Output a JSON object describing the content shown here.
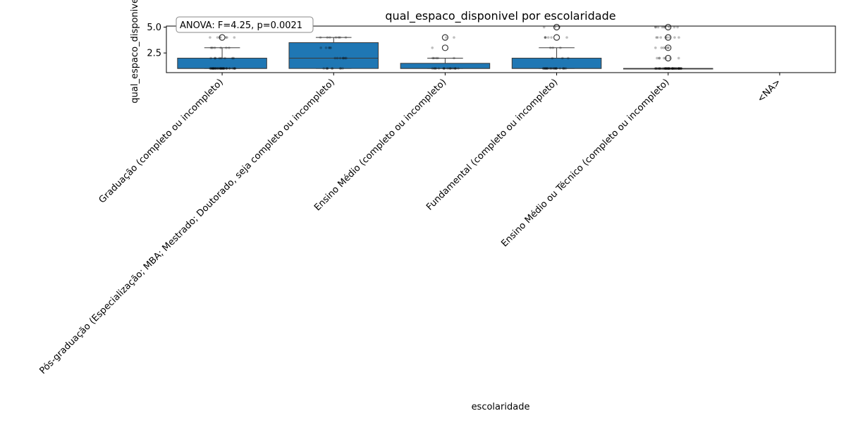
{
  "chart_data": {
    "type": "box",
    "title": "qual_espaco_disponivel por escolaridade",
    "xlabel": "escolaridade",
    "ylabel": "qual_espaco_disponivel",
    "ylim": [
      0.6,
      5.1
    ],
    "yticks": [
      2.5,
      5.0
    ],
    "ytick_labels": [
      "2.5",
      "5.0"
    ],
    "annotation": "ANOVA: F=4.25, p=0.0021",
    "box_color": "#1f77b4",
    "categories": [
      "Graduação (completo ou incompleto)",
      "Pós-graduação (Especialização; MBA; Mestrado; Doutorado, seja completo ou incompleto)",
      "Ensino Médio (completo ou incompleto)",
      "Fundamental (completo ou incompleto)",
      "Ensino Médio ou Técnico (completo ou incompleto)",
      "<NA>"
    ],
    "boxes": [
      {
        "q1": 1,
        "median": 1,
        "q3": 2,
        "whisker_low": 1,
        "whisker_high": 3,
        "outliers": [
          4
        ]
      },
      {
        "q1": 1,
        "median": 2,
        "q3": 3.5,
        "whisker_low": 1,
        "whisker_high": 4,
        "outliers": []
      },
      {
        "q1": 1,
        "median": 1,
        "q3": 1.5,
        "whisker_low": 1,
        "whisker_high": 2,
        "outliers": [
          3,
          4
        ]
      },
      {
        "q1": 1,
        "median": 1,
        "q3": 2,
        "whisker_low": 1,
        "whisker_high": 3,
        "outliers": [
          4,
          5
        ]
      },
      {
        "q1": 1,
        "median": 1,
        "q3": 1,
        "whisker_low": 1,
        "whisker_high": 1,
        "outliers": [
          2,
          3,
          4,
          5
        ]
      },
      null
    ],
    "jitter_points": [
      {
        "values": [
          1,
          1,
          1,
          1,
          1,
          1,
          1,
          1,
          1,
          1,
          1,
          1,
          1,
          1,
          1,
          1,
          1,
          1,
          1,
          1,
          1,
          1,
          1,
          1,
          1,
          1,
          1,
          1,
          1,
          1,
          1,
          1,
          1,
          1,
          1,
          1,
          1,
          1,
          1,
          1,
          1,
          1,
          2,
          2,
          2,
          2,
          2,
          2,
          2,
          2,
          3,
          3,
          3,
          3,
          3,
          3,
          4,
          4,
          4,
          4,
          4,
          4,
          4,
          5,
          5
        ]
      },
      {
        "values": [
          1,
          1,
          1,
          1,
          1,
          1,
          1,
          1,
          1,
          2,
          2,
          2,
          2,
          2,
          2,
          2,
          3,
          3,
          3,
          3,
          3,
          4,
          4,
          4,
          4,
          4,
          4,
          4
        ]
      },
      {
        "values": [
          1,
          1,
          1,
          1,
          1,
          1,
          1,
          1,
          1,
          1,
          1,
          1,
          1,
          1,
          1,
          1,
          1,
          2,
          2,
          2,
          2,
          2,
          3,
          4,
          4
        ]
      },
      {
        "values": [
          1,
          1,
          1,
          1,
          1,
          1,
          1,
          1,
          1,
          1,
          1,
          1,
          1,
          1,
          1,
          1,
          1,
          1,
          1,
          1,
          1,
          1,
          1,
          1,
          2,
          2,
          2,
          3,
          3,
          3,
          4,
          4,
          4,
          4,
          4,
          4,
          5,
          5,
          5
        ]
      },
      {
        "values": [
          1,
          1,
          1,
          1,
          1,
          1,
          1,
          1,
          1,
          1,
          1,
          1,
          1,
          1,
          1,
          1,
          1,
          1,
          1,
          1,
          1,
          1,
          1,
          1,
          1,
          1,
          1,
          1,
          1,
          1,
          1,
          1,
          1,
          1,
          1,
          1,
          1,
          1,
          1,
          1,
          1,
          1,
          1,
          1,
          1,
          1,
          1,
          1,
          1,
          1,
          1,
          1,
          1,
          1,
          1,
          1,
          1,
          1,
          1,
          1,
          2,
          2,
          2,
          2,
          2,
          2,
          2,
          3,
          3,
          3,
          3,
          3,
          3,
          4,
          4,
          4,
          4,
          4,
          4,
          4,
          4,
          5,
          5,
          5,
          5,
          5,
          5,
          5,
          5,
          5
        ]
      },
      {
        "values": []
      }
    ]
  }
}
